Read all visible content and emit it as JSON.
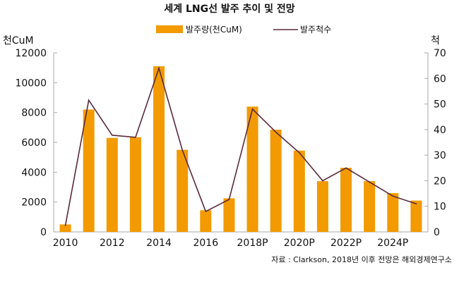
{
  "chart_data": {
    "type": "bar+line",
    "title": "세계 LNG선 발주 추이 및 전망",
    "left_unit": "천CuM",
    "right_unit": "척",
    "categories": [
      "2010",
      "2011",
      "2012",
      "2013",
      "2014",
      "2015",
      "2016",
      "2017",
      "2018P",
      "2019P",
      "2020P",
      "2021P",
      "2022P",
      "2023P",
      "2024P",
      "2025P"
    ],
    "tick_labels": [
      "2010",
      "",
      "2012",
      "",
      "2014",
      "",
      "2016",
      "",
      "2018P",
      "",
      "2020P",
      "",
      "2022P",
      "",
      "2024P",
      ""
    ],
    "ylim_left": [
      0,
      12000
    ],
    "yticks_left": [
      0,
      2000,
      4000,
      6000,
      8000,
      10000,
      12000
    ],
    "ylim_right": [
      0,
      70
    ],
    "yticks_right": [
      0,
      10,
      20,
      30,
      40,
      50,
      60,
      70
    ],
    "series": [
      {
        "name": "발주량(천CuM)",
        "type": "bar",
        "axis": "left",
        "color": "#f29a00",
        "values": [
          500,
          8200,
          6300,
          6350,
          11100,
          5500,
          1450,
          2250,
          8400,
          6850,
          5450,
          3400,
          4300,
          3400,
          2600,
          2100
        ]
      },
      {
        "name": "발주척수",
        "type": "line",
        "axis": "right",
        "color": "#5a2a3e",
        "values": [
          2.5,
          51.5,
          37.8,
          37,
          64,
          32,
          8,
          12.7,
          48,
          39,
          31,
          20,
          25,
          19.5,
          14,
          11
        ]
      }
    ],
    "legend": "top",
    "grid": false,
    "source": "자료 : Clarkson, 2018년 이후 전망은 해외경제연구소"
  }
}
